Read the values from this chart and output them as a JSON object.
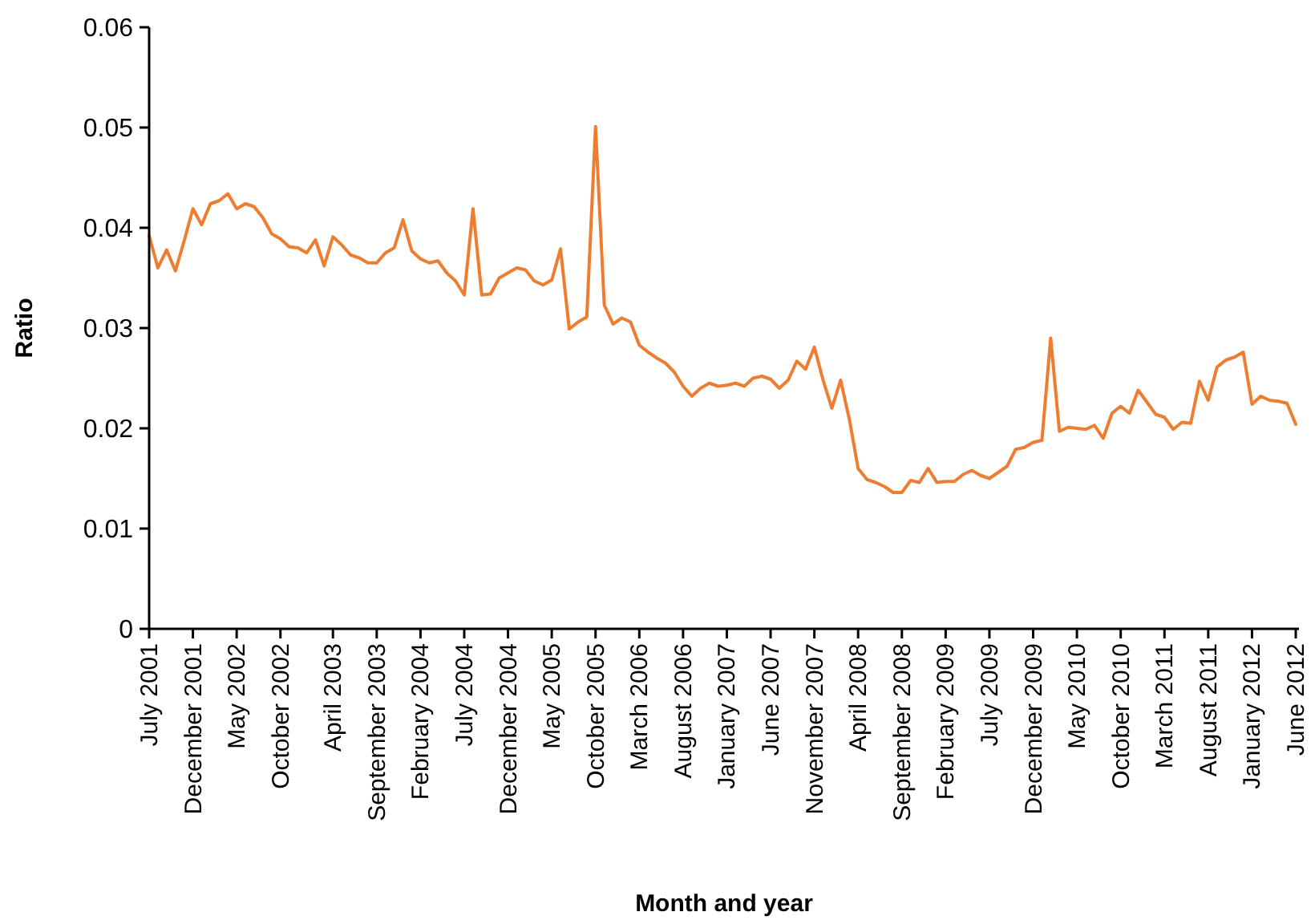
{
  "chart_data": {
    "type": "line",
    "xlabel": "Month and year",
    "ylabel": "Ratio",
    "categories": [
      "July 2001",
      null,
      null,
      null,
      null,
      "December 2001",
      null,
      null,
      null,
      null,
      "May 2002",
      null,
      null,
      null,
      null,
      "October 2002",
      null,
      null,
      null,
      null,
      null,
      "April 2003",
      null,
      null,
      null,
      null,
      "September 2003",
      null,
      null,
      null,
      null,
      "February 2004",
      null,
      null,
      null,
      null,
      "July 2004",
      null,
      null,
      null,
      null,
      "December 2004",
      null,
      null,
      null,
      null,
      "May 2005",
      null,
      null,
      null,
      null,
      "October 2005",
      null,
      null,
      null,
      null,
      "March 2006",
      null,
      null,
      null,
      null,
      "August 2006",
      null,
      null,
      null,
      null,
      "January 2007",
      null,
      null,
      null,
      null,
      "June 2007",
      null,
      null,
      null,
      null,
      "November 2007",
      null,
      null,
      null,
      null,
      "April 2008",
      null,
      null,
      null,
      null,
      "September 2008",
      null,
      null,
      null,
      null,
      "February 2009",
      null,
      null,
      null,
      null,
      "July 2009",
      null,
      null,
      null,
      null,
      "December 2009",
      null,
      null,
      null,
      null,
      "May 2010",
      null,
      null,
      null,
      null,
      "October 2010",
      null,
      null,
      null,
      null,
      "March 2011",
      null,
      null,
      null,
      null,
      "August 2011",
      null,
      null,
      null,
      null,
      "January 2012",
      null,
      null,
      null,
      null,
      "June 2012"
    ],
    "series": [
      {
        "color": "#ed7d31",
        "values": [
          0.0392,
          0.036,
          0.0378,
          0.0357,
          0.0387,
          0.0419,
          0.0403,
          0.0424,
          0.0427,
          0.0434,
          0.0419,
          0.0424,
          0.0421,
          0.041,
          0.0394,
          0.0389,
          0.0381,
          0.038,
          0.0375,
          0.0388,
          0.0362,
          0.0391,
          0.0383,
          0.0373,
          0.037,
          0.0365,
          0.0365,
          0.0375,
          0.038,
          0.0408,
          0.0377,
          0.0369,
          0.0365,
          0.0367,
          0.0355,
          0.0347,
          0.0333,
          0.0419,
          0.0333,
          0.0334,
          0.035,
          0.0355,
          0.036,
          0.0358,
          0.0347,
          0.0343,
          0.0348,
          0.0379,
          0.0299,
          0.0306,
          0.0311,
          0.0501,
          0.0323,
          0.0304,
          0.031,
          0.0306,
          0.0283,
          0.0276,
          0.027,
          0.0265,
          0.0256,
          0.0242,
          0.0232,
          0.024,
          0.0245,
          0.0242,
          0.0243,
          0.0245,
          0.0242,
          0.025,
          0.0252,
          0.0249,
          0.024,
          0.0248,
          0.0267,
          0.0259,
          0.0281,
          0.0248,
          0.022,
          0.0248,
          0.0209,
          0.016,
          0.0149,
          0.0146,
          0.0142,
          0.0136,
          0.0136,
          0.0148,
          0.0146,
          0.016,
          0.0146,
          0.0147,
          0.0147,
          0.0154,
          0.0158,
          0.0153,
          0.015,
          0.0156,
          0.0162,
          0.0179,
          0.0181,
          0.0186,
          0.0188,
          0.029,
          0.0197,
          0.0201,
          0.02,
          0.0199,
          0.0203,
          0.019,
          0.0215,
          0.0222,
          0.0215,
          0.0238,
          0.0226,
          0.0214,
          0.0211,
          0.0199,
          0.0206,
          0.0205,
          0.0247,
          0.0228,
          0.0261,
          0.0268,
          0.0271,
          0.0276,
          0.0224,
          0.0232,
          0.0228,
          0.0227,
          0.0225,
          0.0204
        ]
      }
    ],
    "ylim": [
      0,
      0.06
    ],
    "yticks": [
      0,
      0.01,
      0.02,
      0.03,
      0.04,
      0.05,
      0.06
    ],
    "marker": "none",
    "line_style": "solid"
  }
}
